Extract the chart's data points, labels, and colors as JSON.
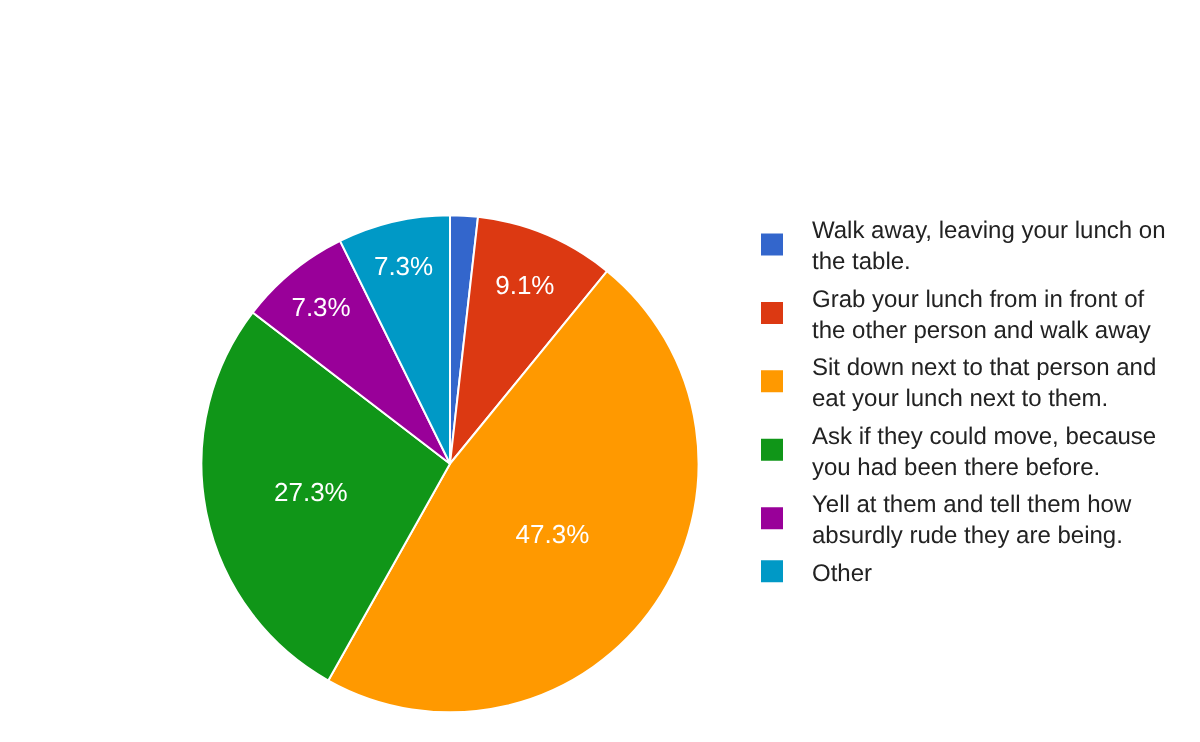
{
  "chart_data": {
    "type": "pie",
    "categories": [
      "Walk away, leaving your lunch on the table.",
      "Grab your lunch from in front of the other person and walk away",
      "Sit down next to that person and eat your lunch next to them.",
      "Ask if they could move, because you had been there before.",
      "Yell at them and tell them how absurdly rude they are being.",
      "Other"
    ],
    "values": [
      1.8,
      9.1,
      47.3,
      27.3,
      7.3,
      7.3
    ],
    "value_labels": [
      null,
      "9.1%",
      "47.3%",
      "27.3%",
      "7.3%",
      "7.3%"
    ],
    "colors": [
      "#3366cc",
      "#dc3912",
      "#ff9900",
      "#109618",
      "#990099",
      "#0099c6"
    ],
    "legend": "right"
  }
}
